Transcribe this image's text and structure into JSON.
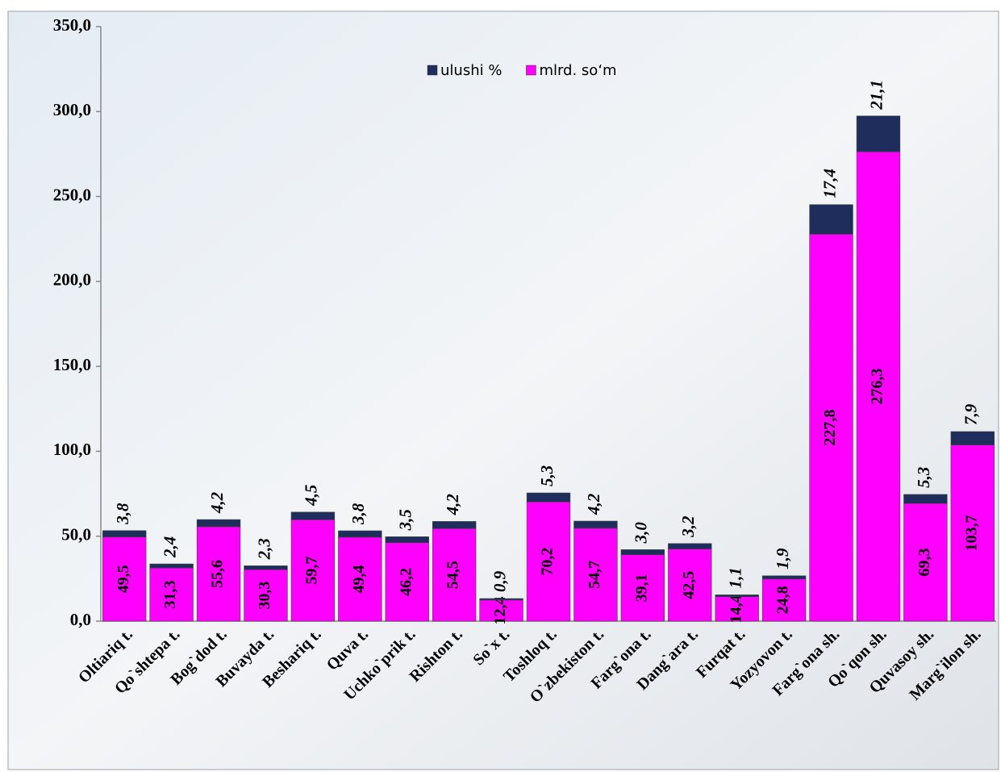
{
  "chart_data": {
    "type": "stacked_bar",
    "categories": [
      "Oltiariq t.",
      "Qo`shtepa t.",
      "Bog`dod t.",
      "Buvayda t.",
      "Beshariq t.",
      "Quva t.",
      "Uchko`prik t.",
      "Rishton t.",
      "So`x t.",
      "Toshloq t.",
      "O`zbekiston t.",
      "Farg`ona t.",
      "Dang`ara t.",
      "Furqat t.",
      "Yozyovon t.",
      "Farg`ona sh.",
      "Qo`qon sh.",
      "Quvasoy sh.",
      "Marg`ilon sh."
    ],
    "series": [
      {
        "name": "ulushi %",
        "color": "#1f2d5c",
        "values": [
          3.8,
          2.4,
          4.2,
          2.3,
          4.5,
          3.8,
          3.5,
          4.2,
          0.9,
          5.3,
          4.2,
          3.0,
          3.2,
          1.1,
          1.9,
          17.4,
          21.1,
          5.3,
          7.9
        ],
        "value_labels": [
          "3,8",
          "2,4",
          "4,2",
          "2,3",
          "4,5",
          "3,8",
          "3,5",
          "4,2",
          "0,9",
          "5,3",
          "4,2",
          "3,0",
          "3,2",
          "1,1",
          "1,9",
          "17,4",
          "21,1",
          "5,3",
          "7,9"
        ]
      },
      {
        "name": "mlrd. so‘m",
        "color": "#ff00ff",
        "values": [
          49.5,
          31.3,
          55.6,
          30.3,
          59.7,
          49.4,
          46.2,
          54.5,
          12.4,
          70.2,
          54.7,
          39.1,
          42.5,
          14.4,
          24.8,
          227.8,
          276.3,
          69.3,
          103.7
        ],
        "value_labels": [
          "49,5",
          "31,3",
          "55,6",
          "30,3",
          "59,7",
          "49,4",
          "46,2",
          "54,5",
          "12,4",
          "70,2",
          "54,7",
          "39,1",
          "42,5",
          "14,4",
          "24,8",
          "227,8",
          "276,3",
          "69,3",
          "103,7"
        ]
      }
    ],
    "ylim": [
      0,
      350
    ],
    "yticks": [
      {
        "value": 0,
        "label": "0,0"
      },
      {
        "value": 50,
        "label": "50,0"
      },
      {
        "value": 100,
        "label": "100,0"
      },
      {
        "value": 150,
        "label": "150,0"
      },
      {
        "value": 200,
        "label": "200,0"
      },
      {
        "value": 250,
        "label": "250,0"
      },
      {
        "value": 300,
        "label": "300,0"
      },
      {
        "value": 350,
        "label": "350,0"
      }
    ],
    "grid": false,
    "legend": "top"
  }
}
